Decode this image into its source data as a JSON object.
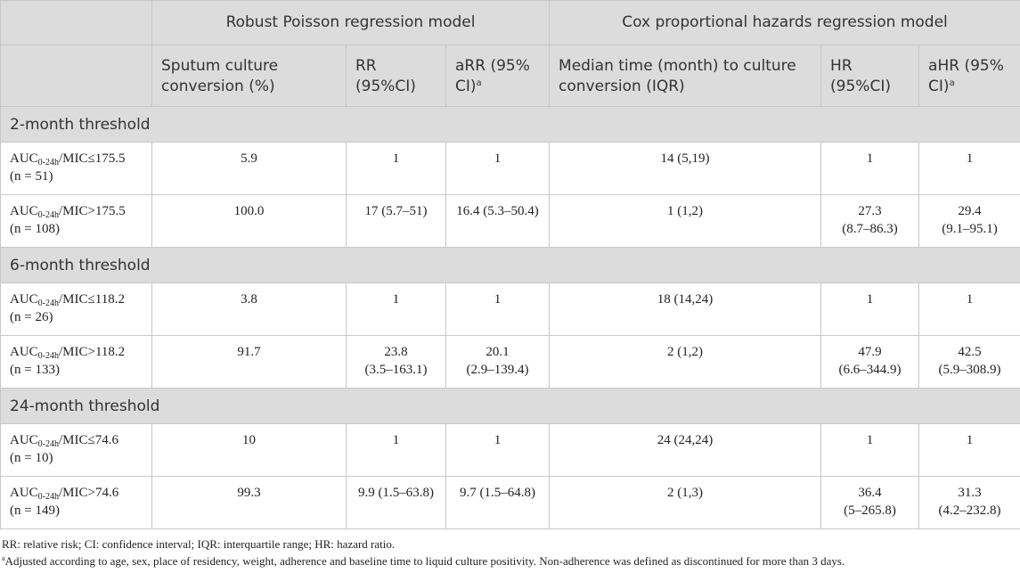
{
  "header": {
    "group1": "Robust Poisson regression model",
    "group2": "Cox proportional hazards regression model",
    "col_sputum_l1": "Sputum culture",
    "col_sputum_l2": "conversion (%)",
    "col_rr_l1": "RR",
    "col_rr_l2": "(95%CI)",
    "col_arr_l1": "aRR (95%",
    "col_arr_l2": "CI)",
    "col_arr_sup": "a",
    "col_median_l1": "Median time (month) to culture",
    "col_median_l2": "conversion (IQR)",
    "col_hr_l1": "HR",
    "col_hr_l2": "(95%CI)",
    "col_ahr_l1": "aHR (95%",
    "col_ahr_l2": "CI)",
    "col_ahr_sup": "a"
  },
  "sections": [
    {
      "title": "2-month threshold",
      "rows": [
        {
          "auc": "AUC",
          "sub": "0-24h",
          "cond": "/MIC≤175.5",
          "n": "(n = 51)",
          "sputum": "5.9",
          "rr": "1",
          "rr2": "",
          "arr": "1",
          "arr2": "",
          "median": "14 (5,19)",
          "hr": "1",
          "hr2": "",
          "ahr": "1",
          "ahr2": ""
        },
        {
          "auc": "AUC",
          "sub": "0-24h",
          "cond": "/MIC>175.5",
          "n": "(n = 108)",
          "sputum": "100.0",
          "rr": "17 (5.7–51)",
          "rr2": "",
          "arr": "16.4 (5.3–50.4)",
          "arr2": "",
          "median": "1 (1,2)",
          "hr": "27.3",
          "hr2": "(8.7–86.3)",
          "ahr": "29.4",
          "ahr2": "(9.1–95.1)"
        }
      ]
    },
    {
      "title": "6-month threshold",
      "rows": [
        {
          "auc": "AUC",
          "sub": "0-24h",
          "cond": "/MIC≤118.2",
          "n": "(n = 26)",
          "sputum": "3.8",
          "rr": "1",
          "rr2": "",
          "arr": "1",
          "arr2": "",
          "median": "18 (14,24)",
          "hr": "1",
          "hr2": "",
          "ahr": "1",
          "ahr2": ""
        },
        {
          "auc": "AUC",
          "sub": "0-24h",
          "cond": "/MIC>118.2",
          "n": "(n = 133)",
          "sputum": "91.7",
          "rr": "23.8",
          "rr2": "(3.5–163.1)",
          "arr": "20.1",
          "arr2": "(2.9–139.4)",
          "median": "2 (1,2)",
          "hr": "47.9",
          "hr2": "(6.6–344.9)",
          "ahr": "42.5",
          "ahr2": "(5.9–308.9)"
        }
      ]
    },
    {
      "title": "24-month threshold",
      "rows": [
        {
          "auc": "AUC",
          "sub": "0-24h",
          "cond": "/MIC≤74.6",
          "n": "(n = 10)",
          "sputum": "10",
          "rr": "1",
          "rr2": "",
          "arr": "1",
          "arr2": "",
          "median": "24 (24,24)",
          "hr": "1",
          "hr2": "",
          "ahr": "1",
          "ahr2": ""
        },
        {
          "auc": "AUC",
          "sub": "0-24h",
          "cond": "/MIC>74.6",
          "n": "(n = 149)",
          "sputum": "99.3",
          "rr": "9.9 (1.5–63.8)",
          "rr2": "",
          "arr": "9.7 (1.5–64.8)",
          "arr2": "",
          "median": "2 (1,3)",
          "hr": "36.4",
          "hr2": "(5–265.8)",
          "ahr": "31.3",
          "ahr2": "(4.2–232.8)"
        }
      ]
    }
  ],
  "footnotes": {
    "abbrev": "RR: relative risk; CI: confidence interval; IQR: interquartile range; HR: hazard ratio.",
    "a_marker": "a",
    "a_text": "Adjusted according to age, sex, place of residency, weight, adherence and baseline time to liquid culture positivity. Non-adherence was defined as discontinued for more than 3 days."
  },
  "colors": {
    "header_bg": "#dcdcdc",
    "section_bg": "#dcdcdc",
    "border": "#c8c8c8",
    "text": "#222222"
  }
}
